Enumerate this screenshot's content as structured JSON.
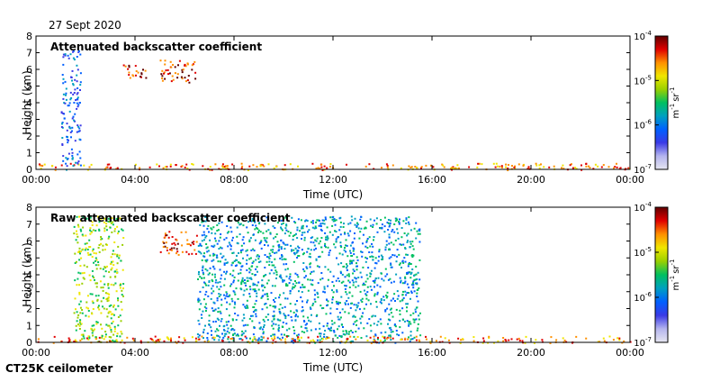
{
  "date": "27 Sept 2020",
  "instrument": "CT25K ceilometer",
  "colors": {
    "background_low": "#dcdcf0",
    "colormap": [
      "#e6e6f0",
      "#b4b4ee",
      "#3a3ae6",
      "#0060ff",
      "#00a0c0",
      "#00c060",
      "#9ad000",
      "#f0e600",
      "#ff9000",
      "#e00000",
      "#600000"
    ]
  },
  "chart_data": [
    {
      "type": "heatmap",
      "title": "Attenuated backscatter coefficient",
      "xlabel": "Time (UTC)",
      "ylabel": "Height (km)",
      "xlim": [
        0,
        24
      ],
      "ylim": [
        0,
        8
      ],
      "xticks": [
        "00:00",
        "04:00",
        "08:00",
        "12:00",
        "16:00",
        "20:00",
        "00:00"
      ],
      "yticks": [
        "0",
        "1",
        "2",
        "3",
        "4",
        "5",
        "6",
        "7",
        "8"
      ],
      "colorbar": {
        "scale": "log",
        "range": [
          1e-07,
          0.0001
        ],
        "ticks": [
          {
            "base": "10",
            "exp": "-4"
          },
          {
            "base": "10",
            "exp": "-5"
          },
          {
            "base": "10",
            "exp": "-6"
          },
          {
            "base": "10",
            "exp": "-7"
          }
        ],
        "unit": {
          "m": "m",
          "m_exp": "-1",
          "sr": "sr",
          "sr_exp": "-1"
        }
      },
      "features": [
        {
          "name": "boundary layer",
          "t_start": 0,
          "t_end": 24,
          "height_km": [
            0,
            0.4
          ],
          "level": 8
        },
        {
          "name": "cloud layer",
          "t_start": 3.5,
          "t_end": 4.5,
          "height_km": [
            5.4,
            6.3
          ],
          "level": 9
        },
        {
          "name": "cloud layer",
          "t_start": 5.0,
          "t_end": 6.5,
          "height_km": [
            5.2,
            6.6
          ],
          "level": 9
        },
        {
          "name": "precipitation",
          "t_start": 1.0,
          "t_end": 1.8,
          "height_km": [
            0,
            7.2
          ],
          "level": 3
        }
      ]
    },
    {
      "type": "heatmap",
      "title": "Raw attenuated backscatter coefficient",
      "xlabel": "Time (UTC)",
      "ylabel": "Height (km)",
      "xlim": [
        0,
        24
      ],
      "ylim": [
        0,
        8
      ],
      "xticks": [
        "00:00",
        "04:00",
        "08:00",
        "12:00",
        "16:00",
        "20:00",
        "00:00"
      ],
      "yticks": [
        "0",
        "1",
        "2",
        "3",
        "4",
        "5",
        "6",
        "7",
        "8"
      ],
      "colorbar": {
        "scale": "log",
        "range": [
          1e-07,
          0.0001
        ],
        "ticks": [
          {
            "base": "10",
            "exp": "-4"
          },
          {
            "base": "10",
            "exp": "-5"
          },
          {
            "base": "10",
            "exp": "-6"
          },
          {
            "base": "10",
            "exp": "-7"
          }
        ],
        "unit": {
          "m": "m",
          "m_exp": "-1",
          "sr": "sr",
          "sr_exp": "-1"
        }
      },
      "features": [
        {
          "name": "noise (daylight)",
          "t_start": 1.5,
          "t_end": 3.5,
          "height_km": [
            0,
            7.5
          ],
          "level": 6
        },
        {
          "name": "noise",
          "t_start": 6.5,
          "t_end": 15.5,
          "height_km": [
            0,
            7.5
          ],
          "level": 4
        },
        {
          "name": "cloud layer",
          "t_start": 5.0,
          "t_end": 6.5,
          "height_km": [
            5.2,
            6.6
          ],
          "level": 9
        },
        {
          "name": "boundary layer",
          "t_start": 0,
          "t_end": 24,
          "height_km": [
            0,
            0.4
          ],
          "level": 8
        }
      ]
    }
  ]
}
